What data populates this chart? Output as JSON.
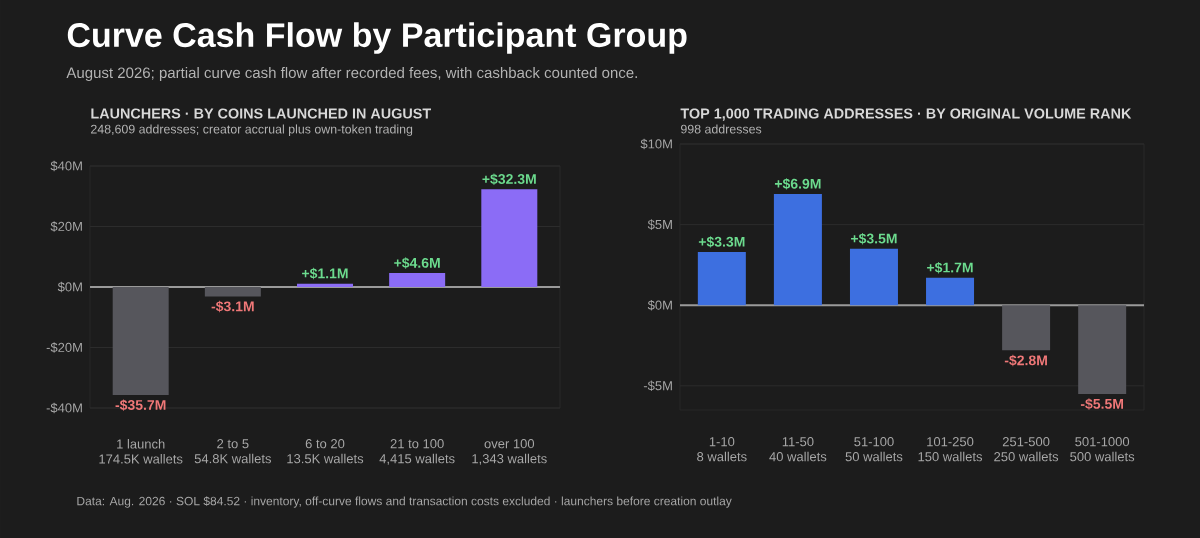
{
  "chart_data": [
    {
      "type": "bar",
      "title": "LAUNCHERS · BY COINS LAUNCHED IN AUGUST",
      "subtitle": "248,609 addresses; creator accrual plus own-token trading",
      "annotations": [
        "Curve Cash Flow by Participant Group",
        "August 2026; partial curve cash flow after recorded fees, with cashback counted once.",
        "Data: Aug. 2026 · SOL $84.52 · inventory, off-curve flows and transaction costs excluded · launchers before creation outlay"
      ],
      "categories": [
        "1 launch\n174.5K wallets",
        "2 to 5\n54.8K wallets",
        "6 to 20\n13.5K wallets",
        "21 to 100\n4,415 wallets",
        "over 100\n1,343 wallets"
      ],
      "values": [
        -35.7,
        -3.1,
        1.1,
        4.6,
        32.3
      ],
      "colors": [
        "#56565c",
        "#56565c",
        "#8b6cf6",
        "#8b6cf6",
        "#8b6cf6"
      ],
      "value_labels": [
        "-$35.7M",
        "-$3.1M",
        "+$1.1M",
        "+$4.6M",
        "+$32.3M"
      ],
      "ylim": [
        -40,
        40
      ],
      "yticks": [
        {
          "value": -40,
          "label": "-$40M"
        },
        {
          "value": -20,
          "label": "-$20M"
        },
        {
          "value": 0,
          "label": "$0M"
        },
        {
          "value": 20,
          "label": "$20M"
        },
        {
          "value": 40,
          "label": "$40M"
        }
      ],
      "grid": "y"
    },
    {
      "type": "bar",
      "title": "TOP 1,000 TRADING ADDRESSES · BY ORIGINAL VOLUME RANK",
      "subtitle": "998 addresses",
      "categories": [
        "1-10\n8 wallets",
        "11-50\n40 wallets",
        "51-100\n50 wallets",
        "101-250\n150 wallets",
        "251-500\n250 wallets",
        "501-1000\n500 wallets"
      ],
      "values": [
        3.3,
        6.9,
        3.5,
        1.7,
        -2.8,
        -5.5
      ],
      "colors": [
        "#3d6fe0",
        "#3d6fe0",
        "#3d6fe0",
        "#3d6fe0",
        "#56565c",
        "#56565c"
      ],
      "value_labels": [
        "+$3.3M",
        "+$6.9M",
        "+$3.5M",
        "+$1.7M",
        "-$2.8M",
        "-$5.5M"
      ],
      "ylim": [
        -6.5,
        10
      ],
      "yticks": [
        {
          "value": -5,
          "label": "-$5M"
        },
        {
          "value": 0,
          "label": "$0M"
        },
        {
          "value": 5,
          "label": "$5M"
        },
        {
          "value": 10,
          "label": "$10M"
        }
      ],
      "grid": "y"
    }
  ]
}
